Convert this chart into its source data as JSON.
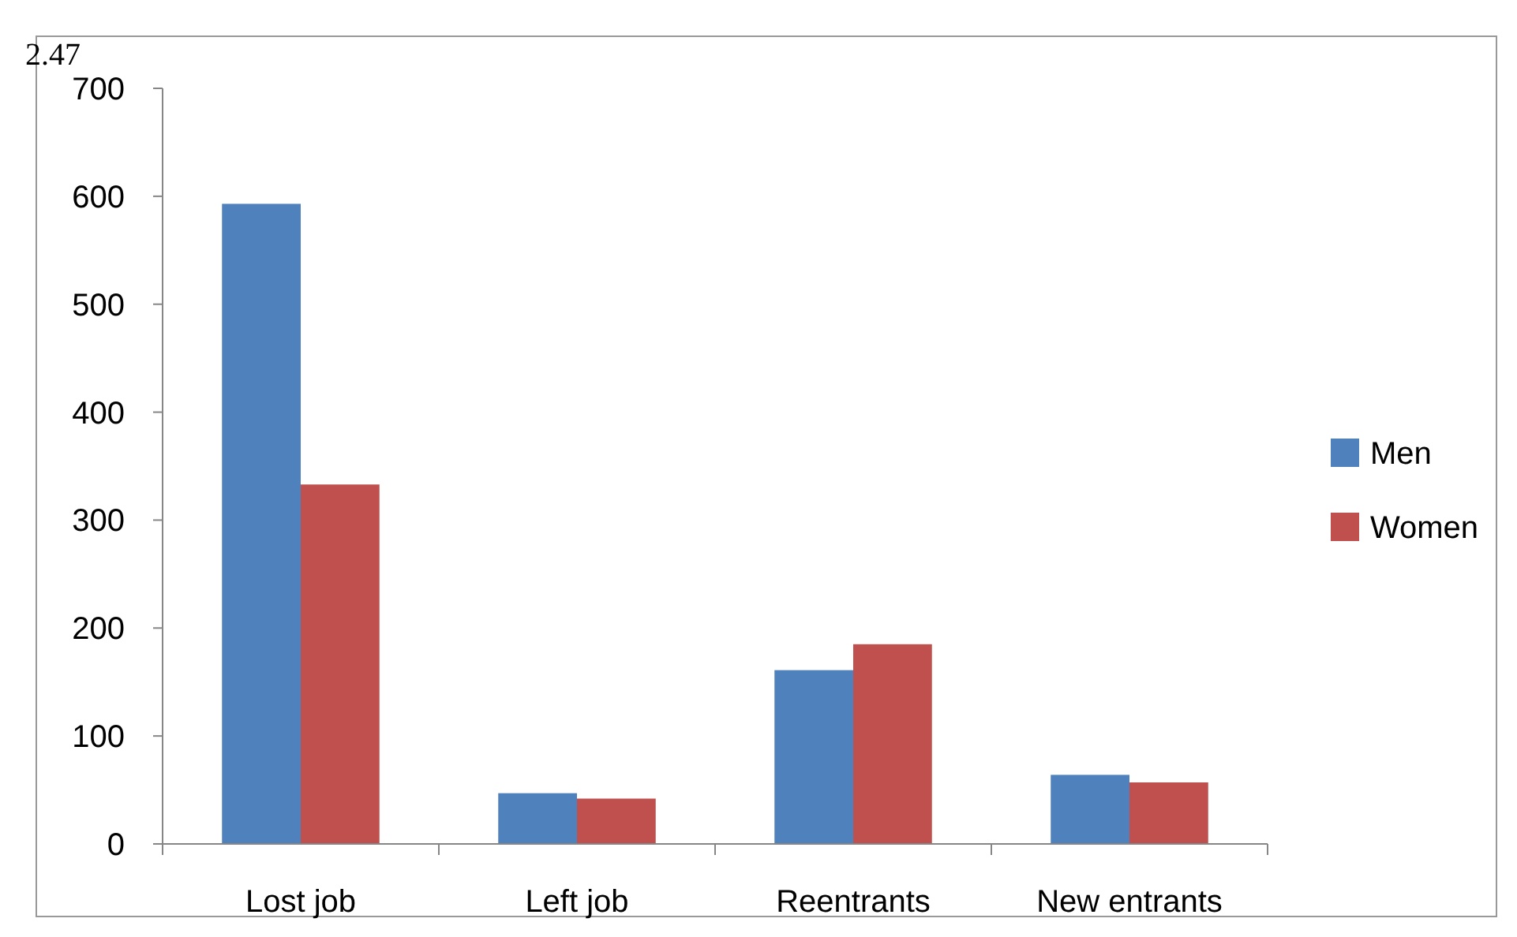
{
  "chart_data": {
    "type": "bar",
    "categories": [
      "Lost job",
      "Left job",
      "Reentrants",
      "New entrants"
    ],
    "series": [
      {
        "name": "Men",
        "color": "#4f81bd",
        "values": [
          593,
          47,
          161,
          64
        ]
      },
      {
        "name": "Women",
        "color": "#c0504d",
        "values": [
          333,
          42,
          185,
          57
        ]
      }
    ],
    "ylim": [
      0,
      700
    ],
    "yticks": [
      0,
      100,
      200,
      300,
      400,
      500,
      600,
      700
    ],
    "grid": false,
    "legend": "right",
    "annotations": [
      "2.47"
    ]
  }
}
